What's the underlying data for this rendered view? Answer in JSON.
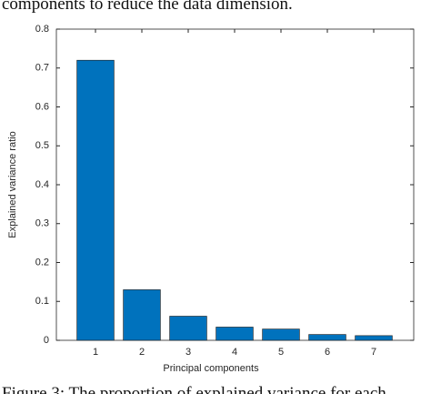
{
  "text_above": "components to reduce the data dimension.",
  "caption": "Figure 3: The proportion of explained variance for each",
  "chart_data": {
    "type": "bar",
    "xlabel": "Principal components",
    "ylabel": "Explained variance ratio",
    "categories": [
      "1",
      "2",
      "3",
      "4",
      "5",
      "6",
      "7"
    ],
    "values": [
      0.72,
      0.13,
      0.062,
      0.034,
      0.029,
      0.015,
      0.012
    ],
    "color": "#0072bd",
    "ylim": [
      0,
      0.8
    ],
    "yticks": [
      0,
      0.1,
      0.2,
      0.3,
      0.4,
      0.5,
      0.6,
      0.7,
      0.8
    ],
    "grid": false
  }
}
